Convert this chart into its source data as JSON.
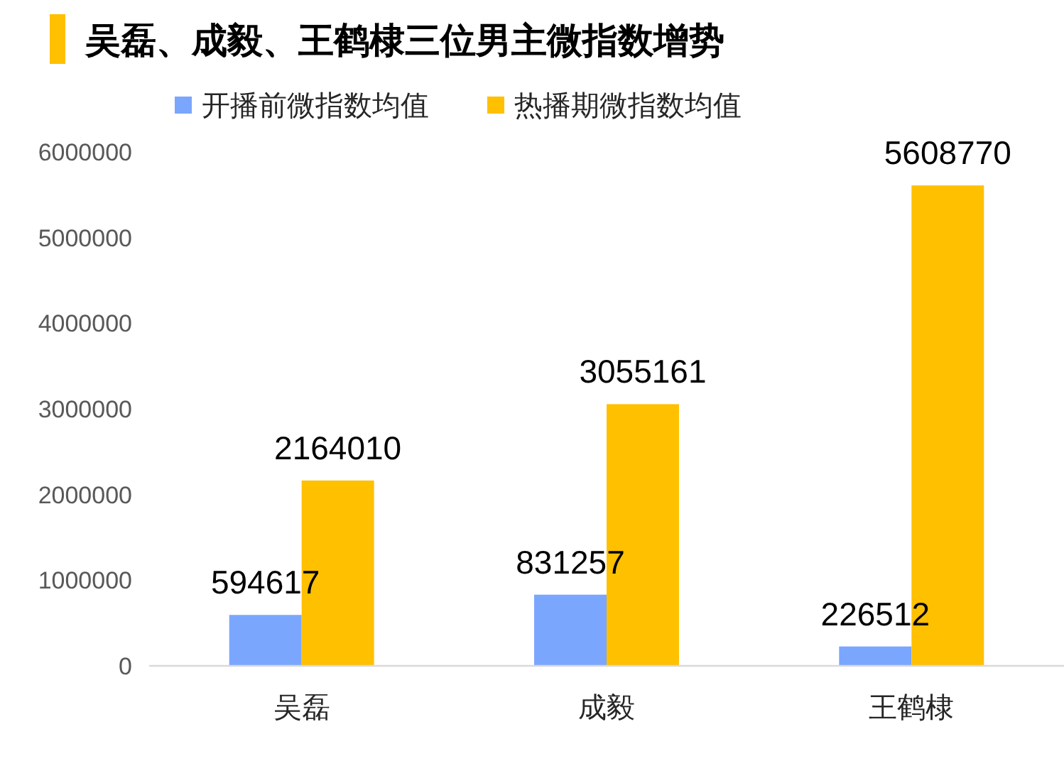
{
  "chart_data": {
    "type": "bar",
    "title": "吴磊、成毅、王鹤棣三位男主微指数增势",
    "categories": [
      "吴磊",
      "成毅",
      "王鹤棣"
    ],
    "series": [
      {
        "name": "开播前微指数均值",
        "color": "#7aa6fe",
        "values": [
          594617,
          831257,
          226512
        ]
      },
      {
        "name": "热播期微指数均值",
        "color": "#ffc000",
        "values": [
          2164010,
          3055161,
          5608770
        ]
      }
    ],
    "ylim": [
      0,
      6000000
    ],
    "yticks": [
      0,
      1000000,
      2000000,
      3000000,
      4000000,
      5000000,
      6000000
    ],
    "data_labels": true,
    "legend": "top"
  }
}
